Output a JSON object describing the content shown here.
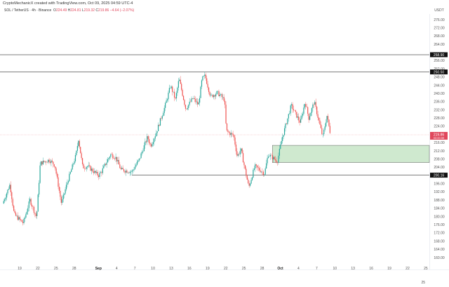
{
  "header": {
    "credit": "CryptoMechanicX created with TradingView.com, Oct 09, 2025 04:59 UTC-4",
    "symbol": "SOL / TetherUS · 4h · Binance",
    "open_label": "O",
    "open": "224.49",
    "high_label": "H",
    "high": "224.81",
    "low_label": "L",
    "low": "219.32",
    "close_label": "C",
    "close": "219.86",
    "change": "−4.64 (−2.07%)"
  },
  "colors": {
    "up": "#26a69a",
    "down": "#ef5350",
    "zone": "#cfe9cf",
    "price_tag": "#e0475c"
  },
  "chart_data": {
    "type": "candlestick",
    "title": "SOL / TetherUS · 4h · Binance",
    "currency_label": "USDT",
    "ylim": [
      158,
      278
    ],
    "y_ticks": [
      "276.00",
      "272.00",
      "268.00",
      "264.00",
      "256.00",
      "252.00",
      "248.00",
      "244.00",
      "240.00",
      "236.00",
      "232.00",
      "228.00",
      "224.00",
      "216.00",
      "212.00",
      "208.00",
      "204.00",
      "196.00",
      "192.00",
      "188.00",
      "184.00",
      "180.00",
      "176.00",
      "172.00",
      "168.00",
      "164.00",
      "160.00"
    ],
    "x_ticks": [
      {
        "day": 19,
        "label": "19"
      },
      {
        "day": 22,
        "label": "22"
      },
      {
        "day": 25,
        "label": "25"
      },
      {
        "day": 28,
        "label": "28"
      },
      {
        "day": 32,
        "label": "Sep",
        "bold": true
      },
      {
        "day": 35,
        "label": "4"
      },
      {
        "day": 38,
        "label": "7"
      },
      {
        "day": 41,
        "label": "10"
      },
      {
        "day": 44,
        "label": "13"
      },
      {
        "day": 47,
        "label": "16"
      },
      {
        "day": 50,
        "label": "19"
      },
      {
        "day": 53,
        "label": "22"
      },
      {
        "day": 56,
        "label": "25"
      },
      {
        "day": 59,
        "label": "28"
      },
      {
        "day": 62,
        "label": "Oct",
        "bold": true
      },
      {
        "day": 65,
        "label": "4"
      },
      {
        "day": 68,
        "label": "7"
      },
      {
        "day": 71,
        "label": "10"
      },
      {
        "day": 74,
        "label": "13"
      },
      {
        "day": 77,
        "label": "16"
      },
      {
        "day": 80,
        "label": "19"
      },
      {
        "day": 83,
        "label": "22"
      },
      {
        "day": 86,
        "label": "25"
      }
    ],
    "x_unit": "days since Aug 0, 2025",
    "price_path": [
      [
        16.2,
        186.3
      ],
      [
        17.4,
        195.6
      ],
      [
        18.1,
        181
      ],
      [
        19.6,
        176.8
      ],
      [
        20.7,
        188
      ],
      [
        21.8,
        179.5
      ],
      [
        22.4,
        206
      ],
      [
        23.9,
        207.6
      ],
      [
        24.8,
        205
      ],
      [
        25.9,
        186.3
      ],
      [
        26.8,
        196
      ],
      [
        28.3,
        210
      ],
      [
        28.7,
        217.8
      ],
      [
        29.4,
        204
      ],
      [
        30.2,
        204.5
      ],
      [
        32.0,
        200
      ],
      [
        32.5,
        201.8
      ],
      [
        34.0,
        210.3
      ],
      [
        34.9,
        208.6
      ],
      [
        35.7,
        202.8
      ],
      [
        37.5,
        201.8
      ],
      [
        38.7,
        207.6
      ],
      [
        40.1,
        218.8
      ],
      [
        40.6,
        214.4
      ],
      [
        41.5,
        220.6
      ],
      [
        43.0,
        234
      ],
      [
        43.9,
        243.8
      ],
      [
        44.7,
        237
      ],
      [
        45.3,
        247.2
      ],
      [
        46.4,
        232.5
      ],
      [
        47.6,
        237.7
      ],
      [
        48.5,
        234.4
      ],
      [
        49.1,
        247.2
      ],
      [
        49.6,
        248.6
      ],
      [
        50.5,
        238.4
      ],
      [
        51.6,
        240.4
      ],
      [
        52.8,
        237
      ],
      [
        53.1,
        221.6
      ],
      [
        54.3,
        219.5
      ],
      [
        54.9,
        209.3
      ],
      [
        55.5,
        212.7
      ],
      [
        56.8,
        194.2
      ],
      [
        57.8,
        204.5
      ],
      [
        59.4,
        201
      ],
      [
        60.0,
        210.3
      ],
      [
        61.5,
        206.9
      ],
      [
        62.3,
        218.2
      ],
      [
        63.8,
        234.2
      ],
      [
        65.3,
        225.7
      ],
      [
        66.1,
        236
      ],
      [
        66.7,
        228
      ],
      [
        67.6,
        236
      ],
      [
        69.0,
        218.8
      ],
      [
        69.7,
        229.1
      ],
      [
        70.3,
        219.86
      ]
    ],
    "horizontal_levels": [
      {
        "price": 258.9,
        "label": "258.90"
      },
      {
        "price": 250.5,
        "label": "250.50"
      },
      {
        "price": 200.16,
        "label": "200.16",
        "from_day": 37.5
      }
    ],
    "zone": {
      "from_day": 60.7,
      "low": 206.3,
      "high": 214.7
    },
    "last_price": {
      "price": 219.86,
      "label": "219.86",
      "countdown": "03:00:59"
    },
    "footer_label": "25"
  }
}
